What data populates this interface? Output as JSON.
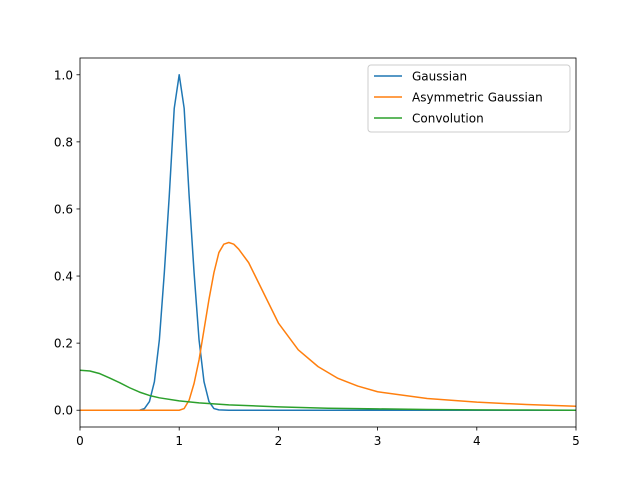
{
  "chart_data": {
    "type": "line",
    "title": "",
    "xlabel": "",
    "ylabel": "",
    "xlim": [
      0,
      5
    ],
    "ylim": [
      -0.05,
      1.05
    ],
    "xticks": [
      0,
      1,
      2,
      3,
      4,
      5
    ],
    "xtick_labels": [
      "0",
      "1",
      "2",
      "3",
      "4",
      "5"
    ],
    "yticks": [
      0.0,
      0.2,
      0.4,
      0.6,
      0.8,
      1.0
    ],
    "ytick_labels": [
      "0.0",
      "0.2",
      "0.4",
      "0.6",
      "0.8",
      "1.0"
    ],
    "grid": false,
    "legend_position": "top-right",
    "series": [
      {
        "name": "Gaussian",
        "color": "#1f77b4",
        "x": [
          0.0,
          0.5,
          0.6,
          0.65,
          0.7,
          0.75,
          0.8,
          0.85,
          0.9,
          0.95,
          1.0,
          1.05,
          1.1,
          1.15,
          1.2,
          1.25,
          1.3,
          1.35,
          1.4,
          1.5,
          2.0,
          3.0,
          4.0,
          5.0
        ],
        "y": [
          0.0,
          0.0,
          0.0,
          0.005,
          0.026,
          0.085,
          0.21,
          0.41,
          0.64,
          0.9,
          1.0,
          0.9,
          0.64,
          0.41,
          0.21,
          0.085,
          0.026,
          0.005,
          0.001,
          0.0,
          0.0,
          0.0,
          0.0,
          0.0
        ]
      },
      {
        "name": "Asymmetric Gaussian",
        "color": "#ff7f0e",
        "x": [
          0.0,
          1.0,
          1.05,
          1.1,
          1.15,
          1.2,
          1.25,
          1.3,
          1.35,
          1.4,
          1.45,
          1.5,
          1.55,
          1.6,
          1.7,
          1.8,
          1.9,
          2.0,
          2.2,
          2.4,
          2.6,
          2.8,
          3.0,
          3.5,
          4.0,
          4.5,
          5.0
        ],
        "y": [
          0.0,
          0.0,
          0.005,
          0.03,
          0.08,
          0.15,
          0.24,
          0.33,
          0.41,
          0.47,
          0.495,
          0.5,
          0.495,
          0.48,
          0.44,
          0.38,
          0.32,
          0.26,
          0.18,
          0.13,
          0.095,
          0.072,
          0.055,
          0.035,
          0.024,
          0.017,
          0.012
        ]
      },
      {
        "name": "Convolution",
        "color": "#2ca02c",
        "x": [
          0.0,
          0.1,
          0.2,
          0.3,
          0.4,
          0.5,
          0.6,
          0.7,
          0.8,
          1.0,
          1.2,
          1.5,
          2.0,
          2.5,
          3.0,
          3.5,
          4.0,
          4.5,
          5.0
        ],
        "y": [
          0.119,
          0.117,
          0.109,
          0.096,
          0.082,
          0.067,
          0.054,
          0.044,
          0.037,
          0.028,
          0.022,
          0.016,
          0.01,
          0.006,
          0.004,
          0.002,
          0.001,
          0.0005,
          0.0
        ]
      }
    ]
  }
}
